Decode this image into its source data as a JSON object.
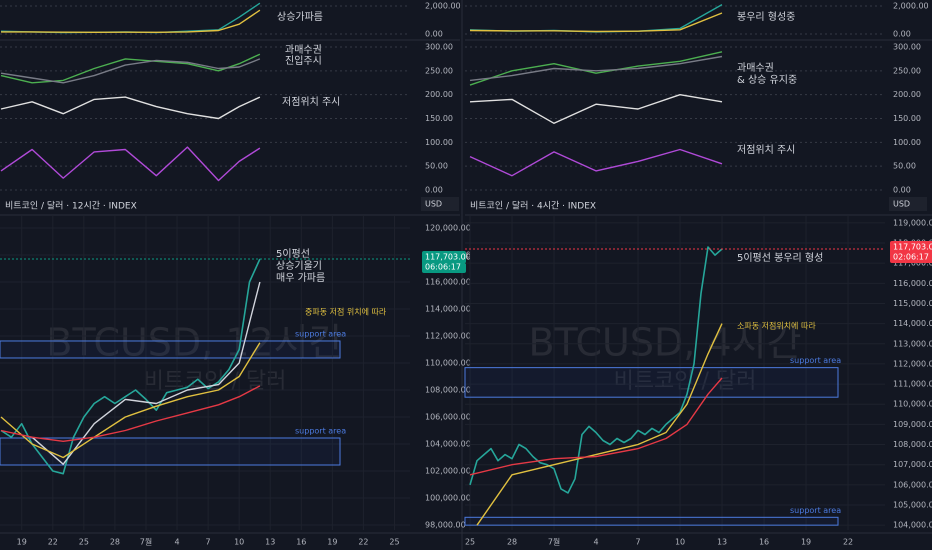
{
  "chart_data": [
    {
      "type": "line",
      "xlim": [
        16.9,
        56.5
      ],
      "ylim": [
        -430,
        2430
      ],
      "yticks": [
        {
          "value": 2000,
          "label": "2,000.00"
        },
        {
          "value": 0,
          "label": "0.00"
        }
      ],
      "annotations": [
        "상승가파름"
      ],
      "series": [
        {
          "color": "#26a69a",
          "x": [
            17,
            20,
            23,
            26,
            29,
            32,
            35,
            38,
            40,
            42
          ],
          "values": [
            200,
            150,
            100,
            120,
            150,
            100,
            200,
            300,
            1200,
            2200
          ]
        },
        {
          "color": "#e0c040",
          "x": [
            17,
            20,
            23,
            26,
            29,
            32,
            35,
            38,
            40,
            42
          ],
          "values": [
            150,
            150,
            130,
            120,
            130,
            120,
            150,
            250,
            700,
            1700
          ]
        }
      ]
    },
    {
      "type": "line",
      "xlim": [
        16.9,
        56.5
      ],
      "ylim": [
        -10.5,
        314.7
      ],
      "yticks": [
        {
          "value": 300,
          "label": "300.00"
        },
        {
          "value": 250,
          "label": "250.00"
        },
        {
          "value": 200,
          "label": "200.00"
        },
        {
          "value": 150,
          "label": "150.00"
        },
        {
          "value": 100,
          "label": "100.00"
        },
        {
          "value": 50,
          "label": "50.00"
        },
        {
          "value": 0,
          "label": "0.00"
        }
      ],
      "annotations": [
        "과매수권",
        "진입주시",
        "저점위치 주시"
      ],
      "series": [
        {
          "color": "#4caf50",
          "x": [
            17,
            20,
            23,
            26,
            29,
            32,
            35,
            38,
            40,
            42
          ],
          "values": [
            240,
            225,
            230,
            255,
            275,
            270,
            265,
            250,
            265,
            285
          ]
        },
        {
          "color": "#787b86",
          "x": [
            17,
            20,
            23,
            26,
            29,
            32,
            35,
            38,
            40,
            42
          ],
          "values": [
            245,
            235,
            225,
            240,
            262,
            272,
            268,
            255,
            258,
            275
          ]
        },
        {
          "color": "#e0e0e0",
          "x": [
            17,
            20,
            23,
            26,
            29,
            32,
            35,
            38,
            40,
            42
          ],
          "values": [
            170,
            185,
            160,
            190,
            195,
            175,
            160,
            150,
            175,
            195
          ]
        },
        {
          "color": "#b04ad8",
          "x": [
            17,
            20,
            23,
            26,
            29,
            32,
            35,
            38,
            40,
            42
          ],
          "values": [
            40,
            85,
            25,
            80,
            85,
            30,
            90,
            20,
            60,
            88
          ]
        }
      ]
    },
    {
      "type": "line",
      "title": "비트코인 / 달러 · 12시간 · INDEX",
      "currency": "USD",
      "watermark": "BTCUSD, 12시간",
      "watermark_sub": "비트코인 / 달러",
      "xlim": [
        16.9,
        56.5
      ],
      "ylim": [
        97630,
        120960
      ],
      "xticks": [
        19,
        22,
        25,
        28,
        {
          "value": 31,
          "label": "7월"
        },
        {
          "value": 34,
          "label": "4"
        },
        {
          "value": 37,
          "label": "7"
        },
        {
          "value": 40,
          "label": "10"
        },
        {
          "value": 43,
          "label": "13"
        },
        {
          "value": 46,
          "label": "16"
        },
        {
          "value": 49,
          "label": "19"
        },
        {
          "value": 52,
          "label": "22"
        },
        {
          "value": 55,
          "label": "25"
        }
      ],
      "yticks": [
        {
          "value": 98000,
          "label": "98,000.00"
        },
        {
          "value": 100000,
          "label": "100,000.00"
        },
        {
          "value": 102000,
          "label": "102,000.00"
        },
        {
          "value": 104000,
          "label": "104,000.00"
        },
        {
          "value": 106000,
          "label": "106,000.00"
        },
        {
          "value": 108000,
          "label": "108,000.00"
        },
        {
          "value": 110000,
          "label": "110,000.00"
        },
        {
          "value": 112000,
          "label": "112,000.00"
        },
        {
          "value": 114000,
          "label": "114,000.00"
        },
        {
          "value": 116000,
          "label": "116,000.00"
        },
        {
          "value": 118000,
          "label": "118,000.00"
        },
        {
          "value": 120000,
          "label": "120,000.00"
        }
      ],
      "current": {
        "value": 117703,
        "label": "117,703.00",
        "countdown": "06:06:17",
        "color": "#089981"
      },
      "annotations": [
        "5이평선",
        "상승기울기",
        "매우 가파름",
        "중파동 저점 위치에 따라"
      ],
      "zones": [
        {
          "label": "support area",
          "from": 110370,
          "to": 111630
        },
        {
          "label": "support area",
          "from": 102444,
          "to": 104444
        }
      ],
      "series": [
        {
          "color": "#26a69a",
          "x": [
            17,
            18,
            19,
            20,
            21,
            22,
            23,
            24,
            25,
            26,
            27,
            28,
            29,
            30,
            31,
            32,
            33,
            34,
            35,
            36,
            37,
            38,
            39,
            40,
            41,
            42
          ],
          "values": [
            105000,
            104500,
            105500,
            104000,
            103000,
            102000,
            101800,
            104500,
            106000,
            107000,
            107500,
            107000,
            107500,
            108000,
            107300,
            106500,
            107800,
            108000,
            108200,
            108800,
            108100,
            108600,
            109500,
            111000,
            116000,
            117703
          ]
        },
        {
          "color": "#d1d4dc",
          "x": [
            20,
            23,
            26,
            29,
            32,
            35,
            38,
            40,
            41,
            42
          ],
          "values": [
            104500,
            102500,
            105500,
            107300,
            107000,
            108000,
            108400,
            110000,
            113000,
            116000
          ]
        },
        {
          "color": "#e0c040",
          "x": [
            17,
            20,
            23,
            26,
            29,
            32,
            35,
            38,
            40,
            42
          ],
          "values": [
            106000,
            104000,
            103000,
            104500,
            106000,
            106800,
            107500,
            108000,
            109000,
            111500
          ]
        },
        {
          "color": "#e53945",
          "x": [
            17,
            20,
            23,
            26,
            29,
            32,
            35,
            38,
            40,
            42
          ],
          "values": [
            105000,
            104500,
            104200,
            104500,
            105000,
            105700,
            106300,
            106900,
            107500,
            108300
          ]
        }
      ]
    },
    {
      "type": "line",
      "xlim": [
        24.64,
        54.64
      ],
      "ylim": [
        -430,
        2430
      ],
      "yticks": [
        {
          "value": 2000,
          "label": "2,000.00"
        },
        {
          "value": 0,
          "label": "0.00"
        }
      ],
      "annotations": [
        "봉우리 형성중"
      ],
      "series": [
        {
          "color": "#26a69a",
          "x": [
            25,
            28,
            31,
            34,
            37,
            40,
            43
          ],
          "values": [
            300,
            200,
            250,
            150,
            200,
            400,
            2100
          ]
        },
        {
          "color": "#e0c040",
          "x": [
            25,
            28,
            31,
            34,
            37,
            40,
            43
          ],
          "values": [
            250,
            220,
            230,
            180,
            200,
            300,
            1500
          ]
        }
      ]
    },
    {
      "type": "line",
      "xlim": [
        24.64,
        54.64
      ],
      "ylim": [
        -10.5,
        314.7
      ],
      "yticks": [
        {
          "value": 300,
          "label": "300.00"
        },
        {
          "value": 250,
          "label": "250.00"
        },
        {
          "value": 200,
          "label": "200.00"
        },
        {
          "value": 150,
          "label": "150.00"
        },
        {
          "value": 100,
          "label": "100.00"
        },
        {
          "value": 50,
          "label": "50.00"
        },
        {
          "value": 0,
          "label": "0.00"
        }
      ],
      "annotations": [
        "과매수권",
        "& 상승 유지중",
        "저점위치 주시"
      ],
      "series": [
        {
          "color": "#4caf50",
          "x": [
            25,
            28,
            31,
            34,
            37,
            40,
            43
          ],
          "values": [
            220,
            250,
            265,
            245,
            260,
            270,
            290
          ]
        },
        {
          "color": "#787b86",
          "x": [
            25,
            28,
            31,
            34,
            37,
            40,
            43
          ],
          "values": [
            230,
            240,
            255,
            250,
            255,
            265,
            280
          ]
        },
        {
          "color": "#e0e0e0",
          "x": [
            25,
            28,
            31,
            34,
            37,
            40,
            43
          ],
          "values": [
            185,
            190,
            140,
            180,
            170,
            200,
            185
          ]
        },
        {
          "color": "#b04ad8",
          "x": [
            25,
            28,
            31,
            34,
            37,
            40,
            43
          ],
          "values": [
            70,
            30,
            80,
            40,
            60,
            85,
            55
          ]
        }
      ]
    },
    {
      "type": "line",
      "title": "비트코인 / 달러 · 4시간 · INDEX",
      "currency": "USD",
      "watermark": "BTCUSD, 4시간",
      "watermark_sub": "비트코인 / 달러",
      "xlim": [
        24.64,
        54.64
      ],
      "ylim": [
        103760,
        119390
      ],
      "xticks": [
        25,
        28,
        {
          "value": 31,
          "label": "7월"
        },
        {
          "value": 34,
          "label": "4"
        },
        {
          "value": 37,
          "label": "7"
        },
        {
          "value": 40,
          "label": "10"
        },
        {
          "value": 43,
          "label": "13"
        },
        {
          "value": 46,
          "label": "16"
        },
        {
          "value": 49,
          "label": "19"
        },
        {
          "value": 52,
          "label": "22"
        }
      ],
      "yticks": [
        {
          "value": 104000,
          "label": "104,000.00"
        },
        {
          "value": 105000,
          "label": "105,000.00"
        },
        {
          "value": 106000,
          "label": "106,000.00"
        },
        {
          "value": 107000,
          "label": "107,000.00"
        },
        {
          "value": 108000,
          "label": "108,000.00"
        },
        {
          "value": 109000,
          "label": "109,000.00"
        },
        {
          "value": 110000,
          "label": "110,000.00"
        },
        {
          "value": 111000,
          "label": "111,000.00"
        },
        {
          "value": 112000,
          "label": "112,000.00"
        },
        {
          "value": 113000,
          "label": "113,000.00"
        },
        {
          "value": 114000,
          "label": "114,000.00"
        },
        {
          "value": 115000,
          "label": "115,000.00"
        },
        {
          "value": 116000,
          "label": "116,000.00"
        },
        {
          "value": 117000,
          "label": "117,000.00"
        },
        {
          "value": 118000,
          "label": "118,000.00"
        },
        {
          "value": 119000,
          "label": "119,000.00"
        }
      ],
      "current": {
        "value": 117703,
        "label": "117,703.00",
        "countdown": "02:06:17",
        "color": "#f23645"
      },
      "annotations": [
        "5이평선 봉우리 형성",
        "소파동 저점위치에 따라"
      ],
      "zones": [
        {
          "label": "support area",
          "from": 110350,
          "to": 111816
        },
        {
          "label": "support area",
          "from": 104000,
          "to": 104390
        }
      ],
      "series": [
        {
          "color": "#26a69a",
          "x": [
            25,
            25.5,
            26,
            26.5,
            27,
            27.5,
            28,
            28.5,
            29,
            29.5,
            30,
            30.5,
            31,
            31.5,
            32,
            32.5,
            33,
            33.5,
            34,
            34.5,
            35,
            35.5,
            36,
            36.5,
            37,
            37.5,
            38,
            38.5,
            39,
            39.5,
            40,
            40.5,
            41,
            41.5,
            42,
            42.5,
            43
          ],
          "values": [
            106000,
            107200,
            107500,
            107800,
            107200,
            107500,
            107300,
            108000,
            107800,
            107400,
            107100,
            107000,
            106800,
            105800,
            105600,
            106300,
            108500,
            108900,
            108600,
            108200,
            108000,
            108300,
            108100,
            108300,
            108700,
            108500,
            108800,
            108600,
            109000,
            109300,
            109600,
            110500,
            112000,
            115500,
            117800,
            117400,
            117703
          ]
        },
        {
          "color": "#e0c040",
          "x": [
            25.5,
            28,
            31,
            34,
            37,
            39,
            40.5,
            42,
            43
          ],
          "values": [
            104000,
            106500,
            107000,
            107500,
            108000,
            108600,
            110000,
            112500,
            114000
          ]
        },
        {
          "color": "#e53945",
          "x": [
            25,
            28,
            31,
            34,
            37,
            39,
            40.5,
            42,
            43
          ],
          "values": [
            106500,
            107000,
            107300,
            107400,
            107800,
            108300,
            109000,
            110500,
            111300
          ]
        }
      ]
    }
  ]
}
